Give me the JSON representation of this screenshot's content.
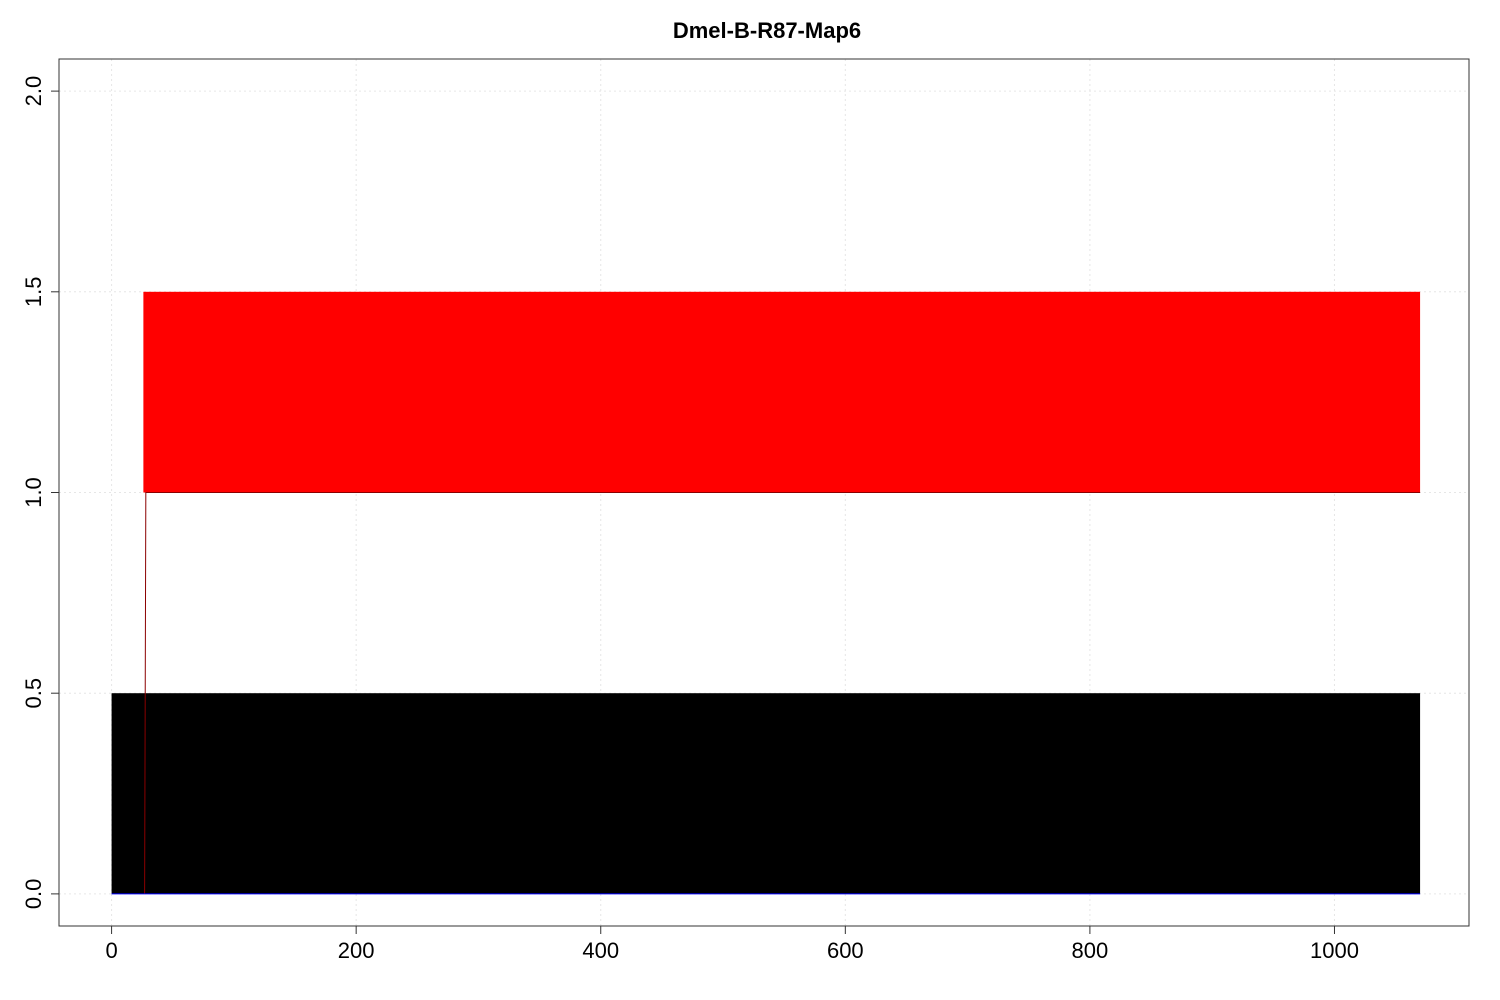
{
  "chart_data": {
    "type": "area",
    "title": "Dmel-B-R87-Map6",
    "xlabel": "",
    "ylabel": "",
    "xlim": [
      -43,
      1110
    ],
    "ylim": [
      -0.08,
      2.08
    ],
    "x_ticks": [
      0,
      200,
      400,
      600,
      800,
      1000
    ],
    "y_ticks": [
      0.0,
      0.5,
      1.0,
      1.5,
      2.0
    ],
    "x_tick_labels": [
      "0",
      "200",
      "400",
      "600",
      "800",
      "1000"
    ],
    "y_tick_labels": [
      "0.0",
      "0.5",
      "1.0",
      "1.5",
      "2.0"
    ],
    "grid": true,
    "bands": [
      {
        "x_start": 0,
        "x_end": 1070,
        "y_bottom": 0.0,
        "y_top": 0.5,
        "color": "#000000"
      },
      {
        "x_start": 26,
        "x_end": 1070,
        "y_bottom": 1.0,
        "y_top": 1.5,
        "color": "#ff0000"
      }
    ],
    "series": [
      {
        "x": [
          27,
          28,
          1070
        ],
        "y": [
          0.0,
          1.0,
          1.0
        ],
        "color": "#8b0000"
      },
      {
        "x": [
          0,
          1070
        ],
        "y": [
          0.0,
          0.0
        ],
        "color": "#0000ff"
      }
    ]
  }
}
